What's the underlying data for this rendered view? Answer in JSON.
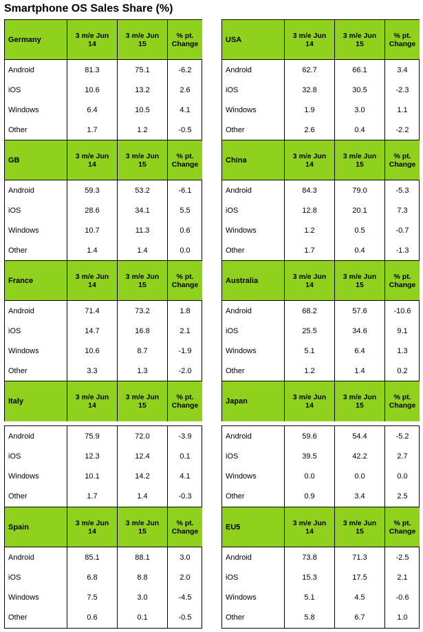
{
  "title": "Smartphone OS Sales Share (%)",
  "columns": [
    "3 m/e Jun\n14",
    "3 m/e Jun\n15",
    "% pt.\nChange"
  ],
  "rows": [
    "Android",
    "iOS",
    "Windows",
    "Other"
  ],
  "colors": {
    "header_bg": "#8fd11c",
    "border": "#000000"
  },
  "tables": [
    {
      "country": "Germany",
      "values": [
        [
          "81.3",
          "75.1",
          "-6.2"
        ],
        [
          "10.6",
          "13.2",
          "2.6"
        ],
        [
          "6.4",
          "10.5",
          "4.1"
        ],
        [
          "1.7",
          "1.2",
          "-0.5"
        ]
      ]
    },
    {
      "country": "USA",
      "values": [
        [
          "62.7",
          "66.1",
          "3.4"
        ],
        [
          "32.8",
          "30.5",
          "-2.3"
        ],
        [
          "1.9",
          "3.0",
          "1.1"
        ],
        [
          "2.6",
          "0.4",
          "-2.2"
        ]
      ]
    },
    {
      "country": "GB",
      "values": [
        [
          "59.3",
          "53.2",
          "-6.1"
        ],
        [
          "28.6",
          "34.1",
          "5.5"
        ],
        [
          "10.7",
          "11.3",
          "0.6"
        ],
        [
          "1.4",
          "1.4",
          "0.0"
        ]
      ]
    },
    {
      "country": "China",
      "values": [
        [
          "84.3",
          "79.0",
          "-5.3"
        ],
        [
          "12.8",
          "20.1",
          "7.3"
        ],
        [
          "1.2",
          "0.5",
          "-0.7"
        ],
        [
          "1.7",
          "0.4",
          "-1.3"
        ]
      ]
    },
    {
      "country": "France",
      "values": [
        [
          "71.4",
          "73.2",
          "1.8"
        ],
        [
          "14.7",
          "16.8",
          "2.1"
        ],
        [
          "10.6",
          "8.7",
          "-1.9"
        ],
        [
          "3.3",
          "1.3",
          "-2.0"
        ]
      ]
    },
    {
      "country": "Australia",
      "values": [
        [
          "68.2",
          "57.6",
          "-10.6"
        ],
        [
          "25.5",
          "34.6",
          "9.1"
        ],
        [
          "5.1",
          "6.4",
          "1.3"
        ],
        [
          "1.2",
          "1.4",
          "0.2"
        ]
      ]
    },
    {
      "country": "Italy",
      "values": [
        [
          "75.9",
          "72.0",
          "-3.9"
        ],
        [
          "12.3",
          "12.4",
          "0.1"
        ],
        [
          "10.1",
          "14.2",
          "4.1"
        ],
        [
          "1.7",
          "1.4",
          "-0.3"
        ]
      ]
    },
    {
      "country": "Japan",
      "values": [
        [
          "59.6",
          "54.4",
          "-5.2"
        ],
        [
          "39.5",
          "42.2",
          "2.7"
        ],
        [
          "0.0",
          "0.0",
          "0.0"
        ],
        [
          "0.9",
          "3.4",
          "2.5"
        ]
      ]
    },
    {
      "country": "Spain",
      "values": [
        [
          "85.1",
          "88.1",
          "3.0"
        ],
        [
          "6.8",
          "8.8",
          "2.0"
        ],
        [
          "7.5",
          "3.0",
          "-4.5"
        ],
        [
          "0.6",
          "0.1",
          "-0.5"
        ]
      ]
    },
    {
      "country": "EU5",
      "values": [
        [
          "73.8",
          "71.3",
          "-2.5"
        ],
        [
          "15.3",
          "17.5",
          "2.1"
        ],
        [
          "5.1",
          "4.5",
          "-0.6"
        ],
        [
          "5.8",
          "6.7",
          "1.0"
        ]
      ]
    }
  ]
}
